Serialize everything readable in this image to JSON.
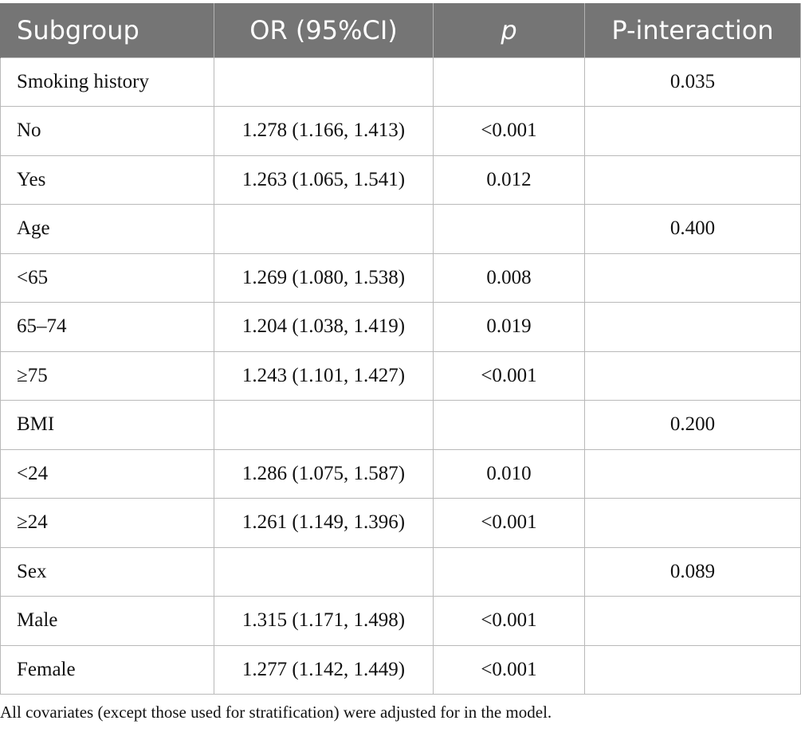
{
  "table": {
    "headers": [
      "Subgroup",
      "OR (95%CI)",
      "p",
      "P-interaction"
    ],
    "rows": [
      {
        "subgroup": "Smoking history",
        "or": "",
        "p": "",
        "p_interaction": "0.035"
      },
      {
        "subgroup": "No",
        "or": "1.278 (1.166, 1.413)",
        "p": "<0.001",
        "p_interaction": ""
      },
      {
        "subgroup": "Yes",
        "or": "1.263 (1.065, 1.541)",
        "p": "0.012",
        "p_interaction": ""
      },
      {
        "subgroup": "Age",
        "or": "",
        "p": "",
        "p_interaction": "0.400"
      },
      {
        "subgroup": "<65",
        "or": "1.269 (1.080, 1.538)",
        "p": "0.008",
        "p_interaction": ""
      },
      {
        "subgroup": "65–74",
        "or": "1.204 (1.038, 1.419)",
        "p": "0.019",
        "p_interaction": ""
      },
      {
        "subgroup": "≥75",
        "or": "1.243 (1.101, 1.427)",
        "p": "<0.001",
        "p_interaction": ""
      },
      {
        "subgroup": "BMI",
        "or": "",
        "p": "",
        "p_interaction": "0.200"
      },
      {
        "subgroup": "<24",
        "or": "1.286 (1.075, 1.587)",
        "p": "0.010",
        "p_interaction": ""
      },
      {
        "subgroup": "≥24",
        "or": "1.261 (1.149, 1.396)",
        "p": "<0.001",
        "p_interaction": ""
      },
      {
        "subgroup": "Sex",
        "or": "",
        "p": "",
        "p_interaction": "0.089"
      },
      {
        "subgroup": "Male",
        "or": "1.315 (1.171, 1.498)",
        "p": "<0.001",
        "p_interaction": ""
      },
      {
        "subgroup": "Female",
        "or": "1.277 (1.142, 1.449)",
        "p": "<0.001",
        "p_interaction": ""
      }
    ]
  },
  "footnote": "All covariates (except those used for stratification) were adjusted for in the model.",
  "colors": {
    "header_bg": "#757575",
    "header_text": "#ffffff",
    "grid": "#b9b9b9"
  }
}
